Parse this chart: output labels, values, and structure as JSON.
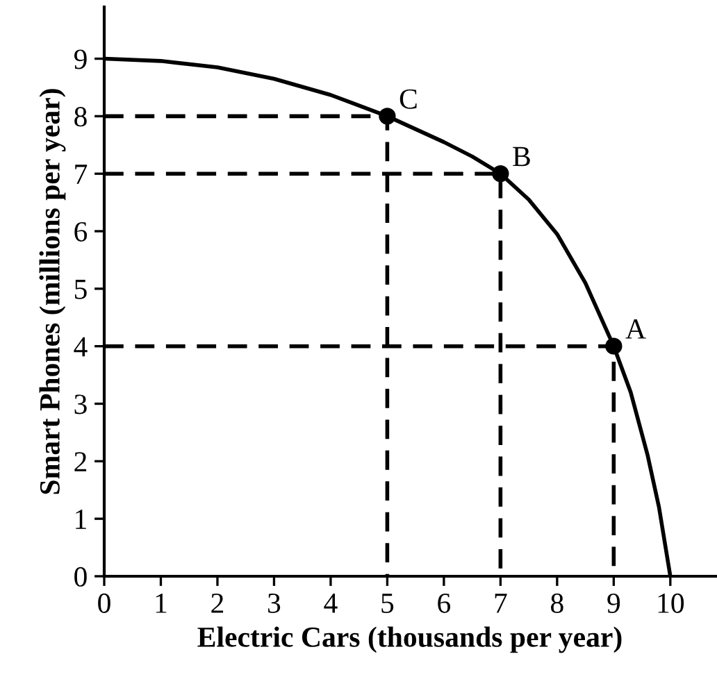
{
  "chart_data": {
    "type": "line",
    "xlabel": "Electric Cars (thousands per year)",
    "ylabel": "Smart Phones (millions per year)",
    "xlim": [
      0,
      10.8
    ],
    "ylim": [
      0,
      9.9
    ],
    "xticks": [
      0,
      1,
      2,
      3,
      4,
      5,
      6,
      7,
      8,
      9,
      10
    ],
    "yticks": [
      0,
      1,
      2,
      3,
      4,
      5,
      6,
      7,
      8,
      9
    ],
    "grid": false,
    "legend": false,
    "series": [
      {
        "color": "#000000",
        "line_style": "solid",
        "marker": "none",
        "x": [
          0,
          1,
          2,
          3,
          4,
          5,
          6,
          6.5,
          7,
          7.5,
          8,
          8.5,
          9,
          9.3,
          9.6,
          9.8,
          10
        ],
        "values": [
          9,
          8.96,
          8.85,
          8.65,
          8.37,
          8,
          7.55,
          7.3,
          7,
          6.55,
          5.95,
          5.1,
          4,
          3.2,
          2.1,
          1.2,
          0
        ]
      },
      {
        "color": "#000000",
        "line_style": "dashed",
        "marker": "none",
        "x": [
          0,
          5,
          5
        ],
        "values": [
          8,
          8,
          0
        ]
      },
      {
        "color": "#000000",
        "line_style": "dashed",
        "marker": "none",
        "x": [
          0,
          7,
          7
        ],
        "values": [
          7,
          7,
          0
        ]
      },
      {
        "color": "#000000",
        "line_style": "dashed",
        "marker": "none",
        "x": [
          0,
          9,
          9
        ],
        "values": [
          4,
          4,
          0
        ]
      },
      {
        "type": "scatter",
        "color": "#000000",
        "marker": "circle",
        "x": [
          9,
          7,
          5
        ],
        "values": [
          4,
          7,
          8
        ]
      }
    ],
    "annotations": [
      {
        "text": "A",
        "x": 9,
        "y": 4
      },
      {
        "text": "B",
        "x": 7,
        "y": 7
      },
      {
        "text": "C",
        "x": 5,
        "y": 8
      }
    ]
  }
}
